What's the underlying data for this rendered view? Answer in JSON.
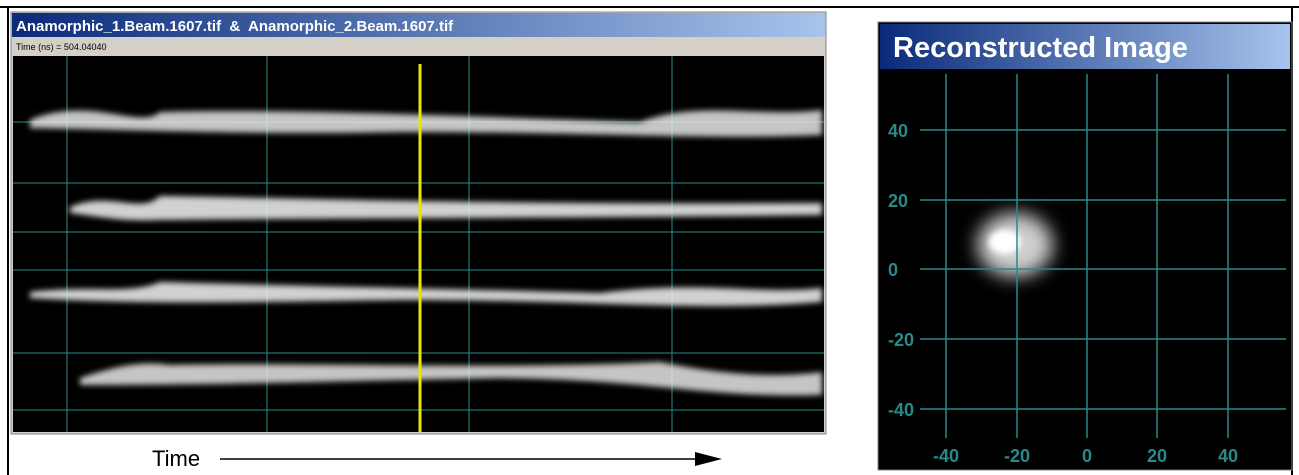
{
  "left_panel": {
    "title": "Anamorphic_1.Beam.1607.tif  &  Anamorphic_2.Beam.1607.tif",
    "status": "Time (ns) = 504.04040"
  },
  "time_label": "Time",
  "right_panel": {
    "title": "Reconstructed Image",
    "y_ticks": [
      40,
      20,
      0,
      -20,
      -40
    ],
    "x_ticks": [
      -40,
      -20,
      0,
      20,
      40
    ]
  }
}
